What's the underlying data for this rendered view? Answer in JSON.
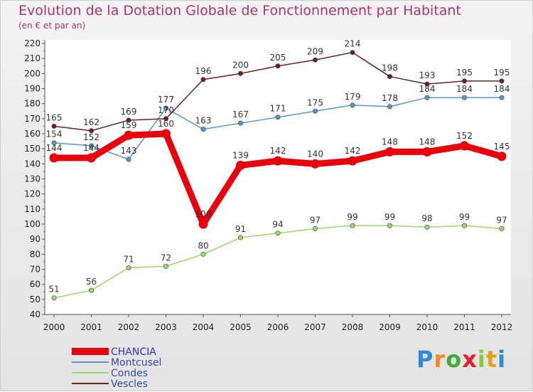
{
  "title": "Evolution de la Dotation Globale de Fonctionnement par Habitant",
  "subtitle": "(en € et par an)",
  "logo": "Proxiti",
  "chart_data": {
    "type": "line",
    "title": "Evolution de la Dotation Globale de Fonctionnement par Habitant",
    "subtitle": "(en € et par an)",
    "x": [
      "2000",
      "2001",
      "2002",
      "2003",
      "2004",
      "2005",
      "2006",
      "2007",
      "2008",
      "2009",
      "2010",
      "2011",
      "2012"
    ],
    "ylim": [
      40,
      220
    ],
    "ytick_step": 10,
    "grid": false,
    "legend_placement": "bottom-left",
    "series": [
      {
        "name": "CHANCIA",
        "color": "#e8000b",
        "values": [
          144,
          144,
          159,
          160,
          100,
          139,
          142,
          140,
          142,
          148,
          148,
          152,
          145
        ]
      },
      {
        "name": "Montcusel",
        "color": "#5b95c8",
        "values": [
          154,
          152,
          143,
          177,
          163,
          167,
          171,
          175,
          179,
          178,
          184,
          184,
          184
        ]
      },
      {
        "name": "Condes",
        "color": "#9ad86a",
        "values": [
          51,
          56,
          71,
          72,
          80,
          91,
          94,
          97,
          99,
          99,
          98,
          99,
          97
        ]
      },
      {
        "name": "Vescles",
        "color": "#6b2121",
        "values": [
          165,
          162,
          169,
          170,
          196,
          200,
          205,
          209,
          214,
          198,
          193,
          195,
          195
        ]
      }
    ]
  }
}
